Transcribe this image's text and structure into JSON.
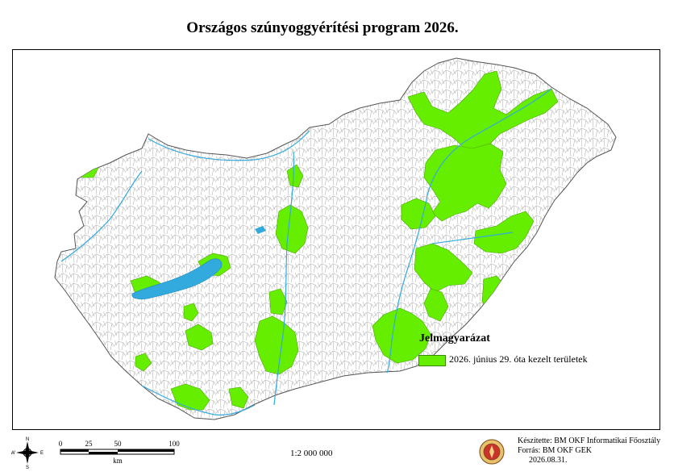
{
  "title": "Országos szúnyoggyérítési program 2026.",
  "legend": {
    "title": "Jelmagyarázat",
    "items": [
      {
        "label": "2026. június 29. óta kezelt területek",
        "color": "#66ee00"
      }
    ]
  },
  "map": {
    "country": "Hungary",
    "water_color": "#33aadd",
    "municipality_border_color": "#aaaaaa",
    "treated_fill_color": "#66ee00"
  },
  "compass": {
    "n": "N",
    "s": "S",
    "e": "E",
    "w": "W"
  },
  "scalebar": {
    "ticks": [
      "0",
      "25",
      "50",
      "100"
    ],
    "unit": "km"
  },
  "scale_ratio": "1:2 000 000",
  "credits": {
    "line1": "Készítette: BM OKF Informatikai Főosztály",
    "line2": "Forrás: BM OKF GEK",
    "date": "2026.08.31."
  }
}
